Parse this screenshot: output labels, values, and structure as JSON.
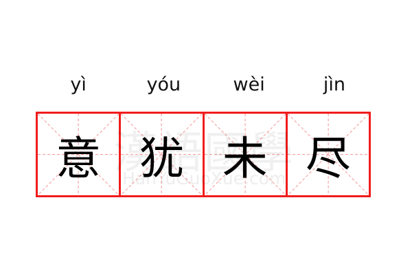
{
  "idiom": {
    "pinyin": [
      "yì",
      "yóu",
      "wèi",
      "jìn"
    ],
    "characters": [
      "意",
      "犹",
      "未",
      "尽"
    ]
  },
  "watermark": {
    "characters": "漢語國學",
    "site": "HanYuGuoXue.com"
  },
  "colors": {
    "grid_border": "#f01c1c",
    "guide_lines": "#f7a6a6"
  }
}
